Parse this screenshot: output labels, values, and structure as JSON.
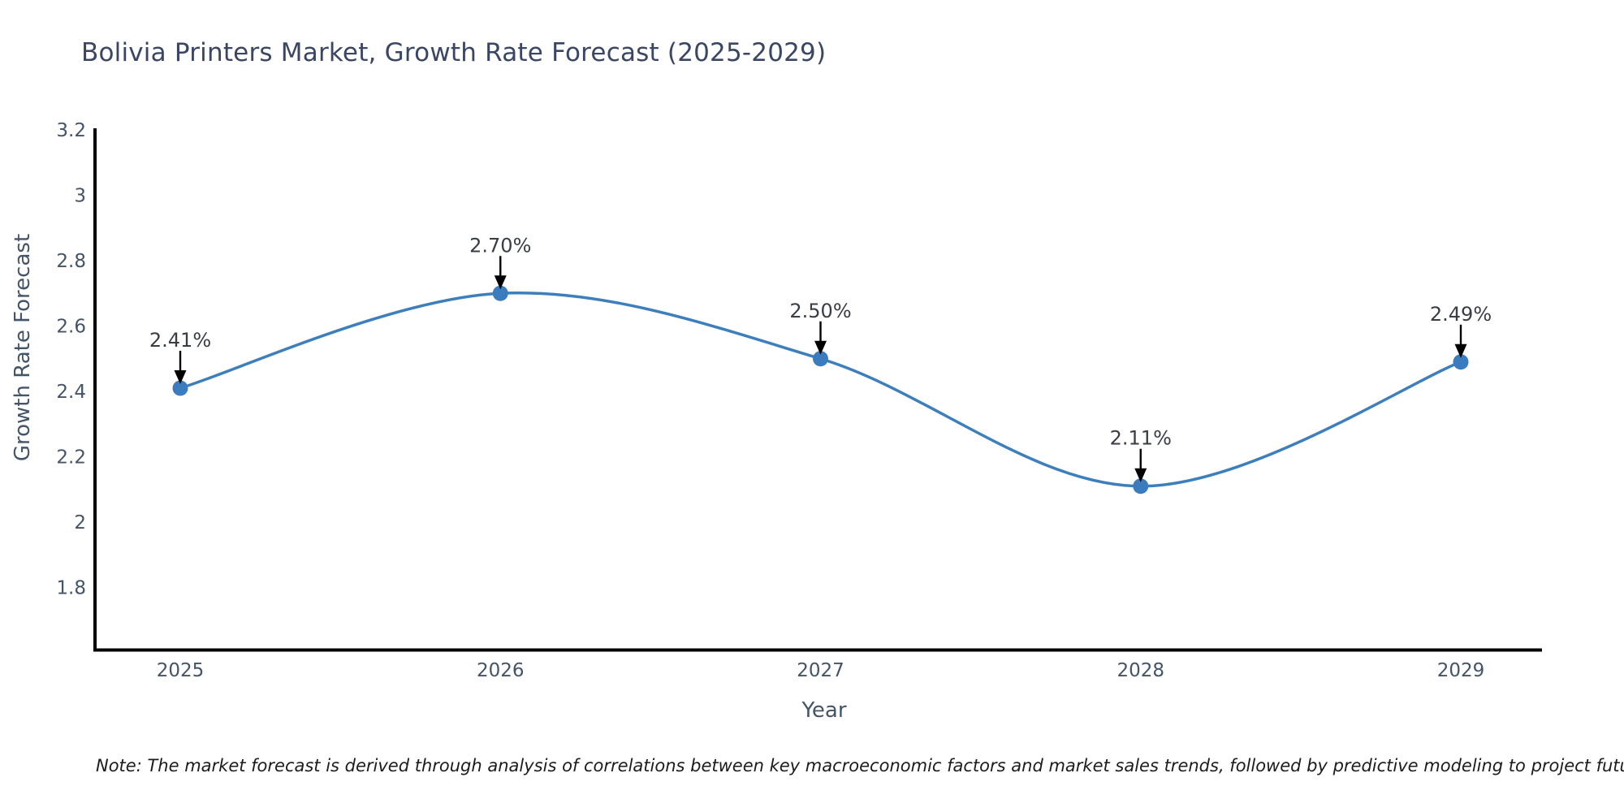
{
  "note": "Note: The market forecast is derived through analysis of correlations between key macroeconomic factors and market sales trends, followed by predictive modeling to project future sales",
  "chart_data": {
    "type": "line",
    "title": "Bolivia Printers Market, Growth Rate Forecast (2025-2029)",
    "xlabel": "Year",
    "ylabel": "Growth Rate Forecast",
    "categories": [
      "2025",
      "2026",
      "2027",
      "2028",
      "2029"
    ],
    "values": [
      2.41,
      2.7,
      2.5,
      2.11,
      2.49
    ],
    "point_labels": [
      "2.41%",
      "2.70%",
      "2.50%",
      "2.11%",
      "2.49%"
    ],
    "y_ticks": [
      1.8,
      2,
      2.2,
      2.4,
      2.6,
      2.8,
      3,
      3.2
    ],
    "ylim": [
      1.6,
      3.21
    ],
    "line_shape": "spline",
    "grid": false,
    "legend": false,
    "annotation_style": "down-arrow-to-point",
    "colors": {
      "line": "#3d7ebd",
      "marker": "#3a7cbe",
      "arrow": "#000000",
      "axis": "#000000",
      "tick_label": "#445469",
      "axis_title": "#445469",
      "title": "#3a4663",
      "annotation": "#383d46",
      "note": "#1c1c1c",
      "background": "#ffffff"
    }
  }
}
